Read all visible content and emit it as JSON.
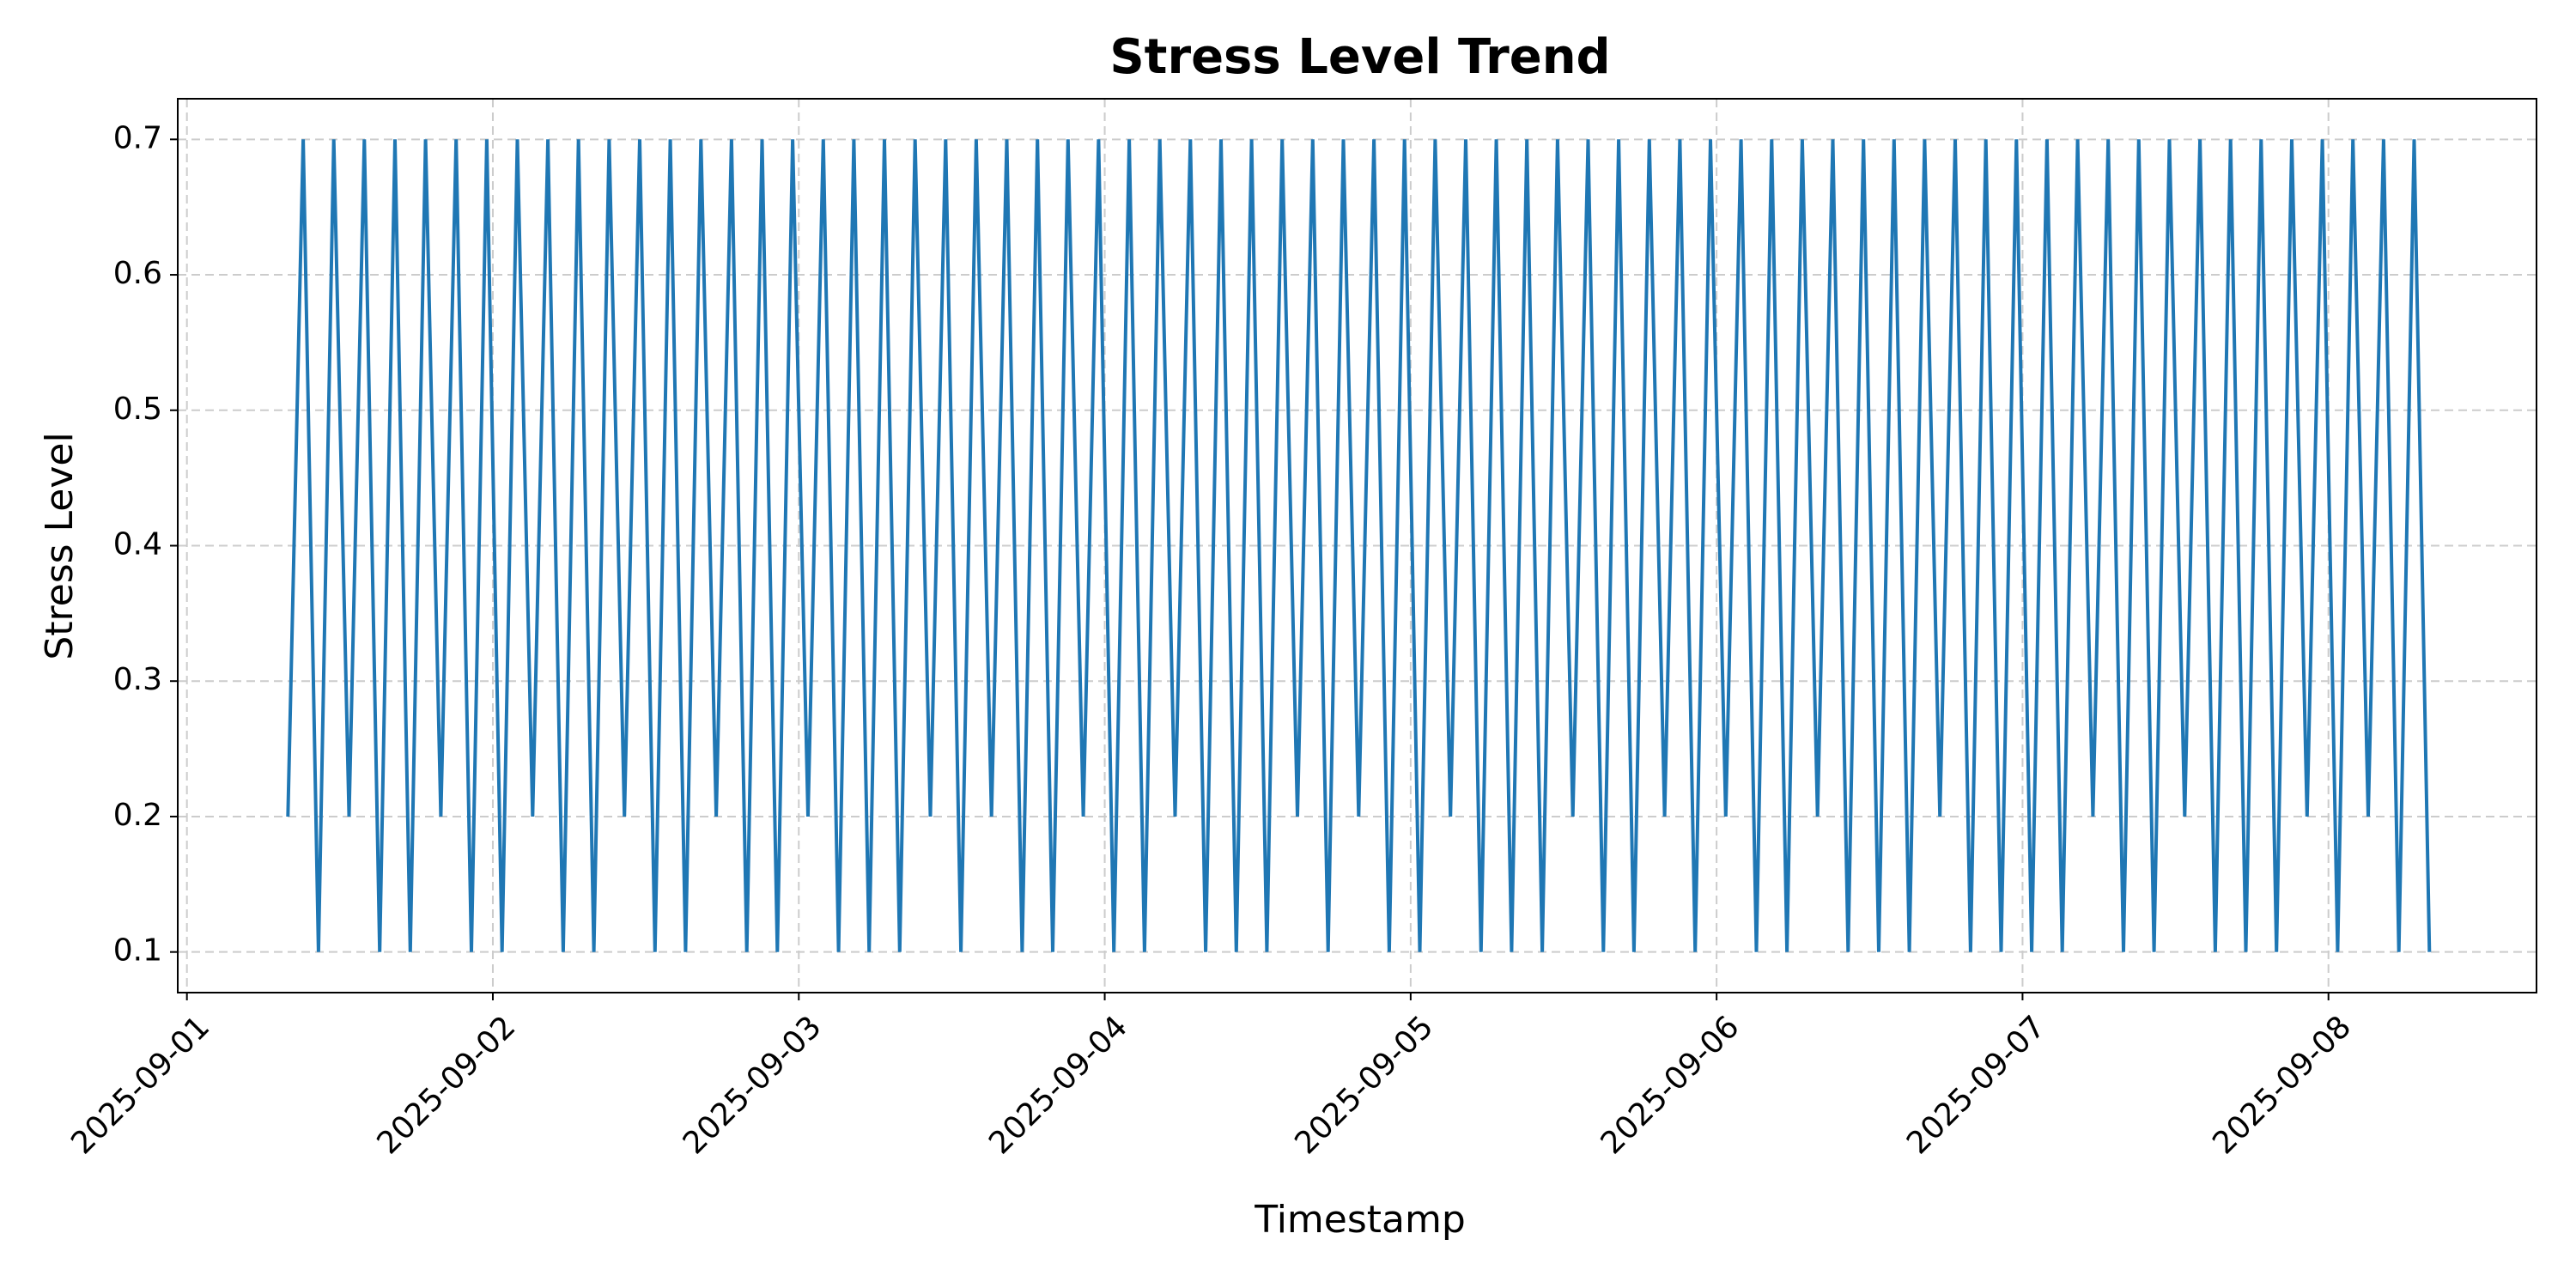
{
  "chart_data": {
    "type": "line",
    "title": "Stress Level Trend",
    "x_label": "Timestamp",
    "y_label": "Stress Level",
    "color": "#1f77b4",
    "grid": true,
    "x": [
      20332.33,
      20332.38,
      20332.43,
      20332.48,
      20332.53,
      20332.58,
      20332.63,
      20332.68,
      20332.73,
      20332.78,
      20332.83,
      20332.88,
      20332.93,
      20332.98,
      20333.03,
      20333.08,
      20333.13,
      20333.18,
      20333.23,
      20333.28,
      20333.33,
      20333.38,
      20333.43,
      20333.48,
      20333.53,
      20333.58,
      20333.63,
      20333.68,
      20333.73,
      20333.78,
      20333.83,
      20333.88,
      20333.93,
      20333.98,
      20334.03,
      20334.08,
      20334.13,
      20334.18,
      20334.23,
      20334.28,
      20334.33,
      20334.38,
      20334.43,
      20334.48,
      20334.53,
      20334.58,
      20334.63,
      20334.68,
      20334.73,
      20334.78,
      20334.83,
      20334.88,
      20334.93,
      20334.98,
      20335.03,
      20335.08,
      20335.13,
      20335.18,
      20335.23,
      20335.28,
      20335.33,
      20335.38,
      20335.43,
      20335.48,
      20335.53,
      20335.58,
      20335.63,
      20335.68,
      20335.73,
      20335.78,
      20335.83,
      20335.88,
      20335.93,
      20335.98,
      20336.03,
      20336.08,
      20336.13,
      20336.18,
      20336.23,
      20336.28,
      20336.33,
      20336.38,
      20336.43,
      20336.48,
      20336.53,
      20336.58,
      20336.63,
      20336.68,
      20336.73,
      20336.78,
      20336.83,
      20336.88,
      20336.93,
      20336.98,
      20337.03,
      20337.08,
      20337.13,
      20337.18,
      20337.23,
      20337.28,
      20337.33,
      20337.38,
      20337.43,
      20337.48,
      20337.53,
      20337.58,
      20337.63,
      20337.68,
      20337.73,
      20337.78,
      20337.83,
      20337.88,
      20337.93,
      20337.98,
      20338.03,
      20338.08,
      20338.13,
      20338.18,
      20338.23,
      20338.28,
      20338.33,
      20338.38,
      20338.43,
      20338.48,
      20338.53,
      20338.58,
      20338.63,
      20338.68,
      20338.73,
      20338.78,
      20338.83,
      20338.88,
      20338.93,
      20338.98,
      20339.03,
      20339.08,
      20339.13,
      20339.18,
      20339.23,
      20339.28,
      20339.33
    ],
    "values": [
      0.2,
      0.7,
      0.1,
      0.7,
      0.2,
      0.7,
      0.1,
      0.7,
      0.1,
      0.7,
      0.2,
      0.7,
      0.1,
      0.7,
      0.1,
      0.7,
      0.2,
      0.7,
      0.1,
      0.7,
      0.1,
      0.7,
      0.2,
      0.7,
      0.1,
      0.7,
      0.1,
      0.7,
      0.2,
      0.7,
      0.1,
      0.7,
      0.1,
      0.7,
      0.2,
      0.7,
      0.1,
      0.7,
      0.1,
      0.7,
      0.1,
      0.7,
      0.2,
      0.7,
      0.1,
      0.7,
      0.2,
      0.7,
      0.1,
      0.7,
      0.1,
      0.7,
      0.2,
      0.7,
      0.1,
      0.7,
      0.1,
      0.7,
      0.2,
      0.7,
      0.1,
      0.7,
      0.1,
      0.7,
      0.1,
      0.7,
      0.2,
      0.7,
      0.1,
      0.7,
      0.2,
      0.7,
      0.1,
      0.7,
      0.1,
      0.7,
      0.2,
      0.7,
      0.1,
      0.7,
      0.1,
      0.7,
      0.1,
      0.7,
      0.2,
      0.7,
      0.1,
      0.7,
      0.1,
      0.7,
      0.2,
      0.7,
      0.1,
      0.7,
      0.2,
      0.7,
      0.1,
      0.7,
      0.1,
      0.7,
      0.2,
      0.7,
      0.1,
      0.7,
      0.1,
      0.7,
      0.1,
      0.7,
      0.2,
      0.7,
      0.1,
      0.7,
      0.1,
      0.7,
      0.1,
      0.7,
      0.1,
      0.7,
      0.2,
      0.7,
      0.1,
      0.7,
      0.1,
      0.7,
      0.2,
      0.7,
      0.1,
      0.7,
      0.1,
      0.7,
      0.1,
      0.7,
      0.2,
      0.7,
      0.1,
      0.7,
      0.2,
      0.7,
      0.1,
      0.7,
      0.1
    ],
    "xlim": [
      20331.97,
      20339.68
    ],
    "xticks": [
      {
        "value": 20332,
        "label": "2025-09-01"
      },
      {
        "value": 20333,
        "label": "2025-09-02"
      },
      {
        "value": 20334,
        "label": "2025-09-03"
      },
      {
        "value": 20335,
        "label": "2025-09-04"
      },
      {
        "value": 20336,
        "label": "2025-09-05"
      },
      {
        "value": 20337,
        "label": "2025-09-06"
      },
      {
        "value": 20338,
        "label": "2025-09-07"
      },
      {
        "value": 20339,
        "label": "2025-09-08"
      }
    ],
    "ylim": [
      0.07,
      0.73
    ],
    "yticks": [
      0.1,
      0.2,
      0.3,
      0.4,
      0.5,
      0.6,
      0.7
    ]
  }
}
